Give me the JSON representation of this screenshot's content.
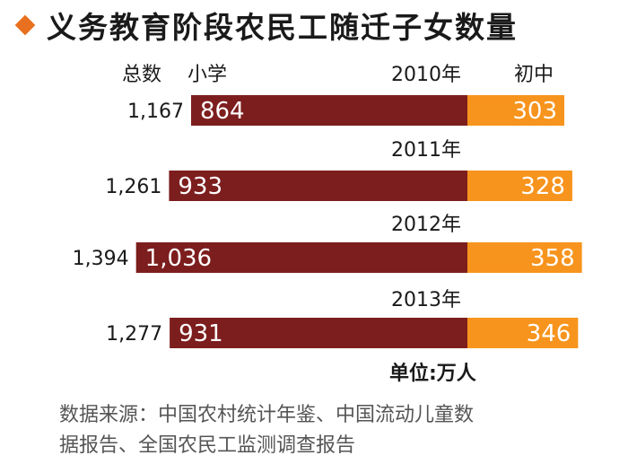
{
  "title": "义务教育阶段农民工随迁子女数量",
  "accent_color": "#e8701e",
  "colors": {
    "primary": "#7d1e1e",
    "middle": "#f7941d"
  },
  "chart_data": {
    "type": "bar",
    "stacked": true,
    "orientation": "horizontal",
    "total_header": "总数",
    "categories": [
      "2010年",
      "2011年",
      "2012年",
      "2013年"
    ],
    "totals": [
      "1,167",
      "1,261",
      "1,394",
      "1,277"
    ],
    "series": [
      {
        "name": "小学",
        "values": [
          864,
          933,
          1036,
          931
        ],
        "labels": [
          "864",
          "933",
          "1,036",
          "931"
        ]
      },
      {
        "name": "初中",
        "values": [
          303,
          328,
          358,
          346
        ],
        "labels": [
          "303",
          "328",
          "358",
          "346"
        ]
      }
    ],
    "unit": "单位:万人"
  },
  "source_lines": [
    "数据来源：中国农村统计年鉴、中国流动儿童数",
    "据报告、全国农民工监测调查报告"
  ]
}
